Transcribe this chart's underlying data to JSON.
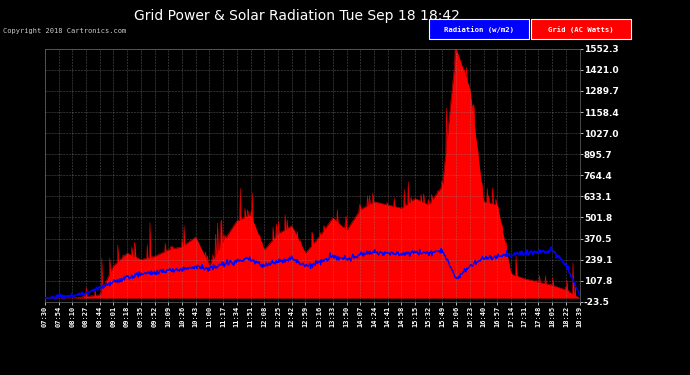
{
  "title": "Grid Power & Solar Radiation Tue Sep 18 18:42",
  "copyright": "Copyright 2018 Cartronics.com",
  "legend_items": [
    "Radiation (w/m2)",
    "Grid (AC Watts)"
  ],
  "legend_colors": [
    "#0000ff",
    "#ff0000"
  ],
  "yticks": [
    -23.5,
    107.8,
    239.1,
    370.5,
    501.8,
    633.1,
    764.4,
    895.7,
    1027.0,
    1158.4,
    1289.7,
    1421.0,
    1552.3
  ],
  "ylim": [
    -23.5,
    1552.3
  ],
  "xtick_labels": [
    "07:30",
    "07:54",
    "08:10",
    "08:27",
    "08:44",
    "09:01",
    "09:18",
    "09:35",
    "09:52",
    "10:09",
    "10:26",
    "10:43",
    "11:00",
    "11:17",
    "11:34",
    "11:51",
    "12:08",
    "12:25",
    "12:42",
    "12:59",
    "13:16",
    "13:33",
    "13:50",
    "14:07",
    "14:24",
    "14:41",
    "14:58",
    "15:15",
    "15:32",
    "15:49",
    "16:06",
    "16:23",
    "16:40",
    "16:57",
    "17:14",
    "17:31",
    "17:48",
    "18:05",
    "18:22",
    "18:39"
  ],
  "bg_color": "#000000",
  "plot_bg_color": "#000000",
  "title_color": "#ffffff",
  "tick_color": "#ffffff",
  "grid_color": "#888888",
  "radiation_color": "#0000ff",
  "grid_watts_color": "#ff0000",
  "grid_watts_fill": "#ff0000",
  "grid_watts_data": [
    0,
    0,
    0,
    10,
    20,
    200,
    280,
    240,
    260,
    300,
    320,
    380,
    200,
    350,
    480,
    520,
    300,
    400,
    450,
    280,
    380,
    500,
    420,
    550,
    600,
    580,
    560,
    620,
    580,
    700,
    1552,
    1300,
    600,
    580,
    150,
    120,
    100,
    80,
    50,
    0
  ],
  "radiation_data": [
    0,
    5,
    15,
    30,
    60,
    100,
    130,
    150,
    160,
    170,
    180,
    200,
    180,
    210,
    230,
    240,
    200,
    230,
    250,
    200,
    220,
    260,
    240,
    270,
    290,
    280,
    270,
    290,
    280,
    300,
    120,
    200,
    250,
    260,
    270,
    280,
    290,
    300,
    210,
    20
  ],
  "n_interp": 800,
  "spike_scale": 1.0
}
